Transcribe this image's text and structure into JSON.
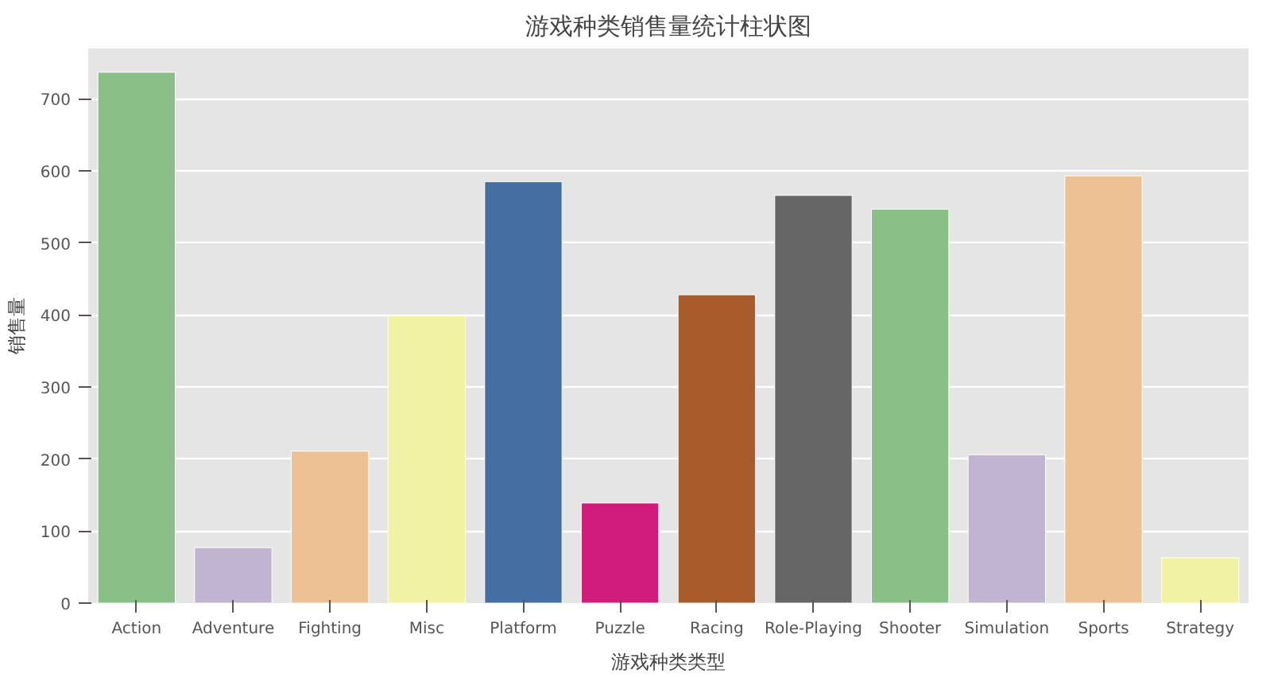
{
  "chart_data": {
    "type": "bar",
    "title": "游戏种类销售量统计柱状图",
    "xlabel": "游戏种类类型",
    "ylabel": "销售量",
    "categories": [
      "Action",
      "Adventure",
      "Fighting",
      "Misc",
      "Platform",
      "Puzzle",
      "Racing",
      "Role-Playing",
      "Shooter",
      "Simulation",
      "Sports",
      "Strategy"
    ],
    "values": [
      737,
      77,
      211,
      399,
      585,
      139,
      428,
      566,
      547,
      206,
      593,
      63
    ],
    "colors": [
      "#8abf87",
      "#c0b4d1",
      "#eec194",
      "#f2f2a4",
      "#456ea2",
      "#d11c7c",
      "#a95c2b",
      "#666666",
      "#8abf87",
      "#c0b4d1",
      "#eec194",
      "#f2f2a4"
    ],
    "ylim": [
      0,
      770
    ],
    "yticks": [
      0,
      100,
      200,
      300,
      400,
      500,
      600,
      700
    ],
    "grid": "y"
  }
}
